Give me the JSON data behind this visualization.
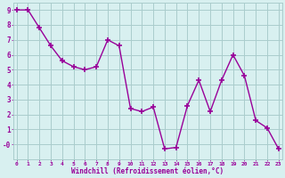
{
  "x": [
    0,
    1,
    2,
    3,
    4,
    5,
    6,
    7,
    8,
    9,
    10,
    11,
    12,
    13,
    14,
    15,
    16,
    17,
    18,
    19,
    20,
    21,
    22,
    23
  ],
  "y": [
    9.0,
    9.0,
    7.8,
    6.6,
    5.6,
    5.2,
    5.0,
    5.2,
    7.0,
    6.6,
    2.4,
    2.2,
    2.5,
    -0.3,
    -0.2,
    2.6,
    4.3,
    2.2,
    4.3,
    6.0,
    4.6,
    1.6,
    1.1,
    -0.3
  ],
  "line_color": "#990099",
  "marker_color": "#990099",
  "bg_color": "#d8f0f0",
  "grid_color": "#aacccc",
  "xlabel": "Windchill (Refroidissement éolien,°C)",
  "xlabel_color": "#990099",
  "tick_color": "#990099",
  "ylim": [
    -1,
    9.5
  ],
  "xlim": [
    -0.3,
    23.3
  ],
  "yticks": [
    0,
    1,
    2,
    3,
    4,
    5,
    6,
    7,
    8,
    9
  ],
  "ytick_labels": [
    "-0",
    "1",
    "2",
    "3",
    "4",
    "5",
    "6",
    "7",
    "8",
    "9"
  ],
  "xticks": [
    0,
    1,
    2,
    3,
    4,
    5,
    6,
    7,
    8,
    9,
    10,
    11,
    12,
    13,
    14,
    15,
    16,
    17,
    18,
    19,
    20,
    21,
    22,
    23
  ]
}
